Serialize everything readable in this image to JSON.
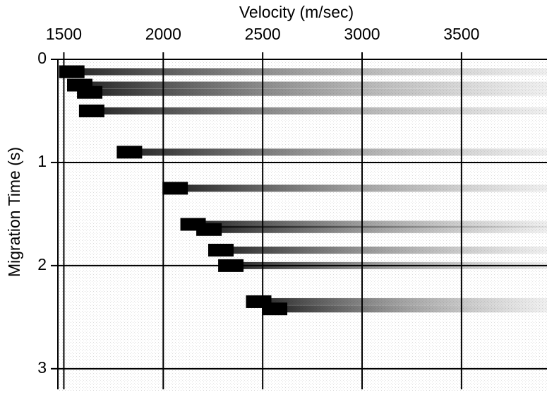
{
  "chart_data": {
    "type": "scatter",
    "title": "Velocity (m/sec)",
    "y_label": "Migration Time (s)",
    "x": [
      1540,
      1580,
      1630,
      1640,
      1830,
      2060,
      2150,
      2230,
      2290,
      2340,
      2480,
      2560
    ],
    "values": [
      0.12,
      0.25,
      0.32,
      0.5,
      0.9,
      1.25,
      1.6,
      1.65,
      1.85,
      2.0,
      2.35,
      2.42
    ],
    "color": "#000000",
    "xlim": [
      1470,
      3930
    ],
    "xticks": [
      1500,
      2000,
      2500,
      3000,
      3500
    ],
    "ylim": [
      0,
      3.2
    ],
    "yticks": [
      0,
      1,
      2,
      3
    ],
    "grid": true
  }
}
